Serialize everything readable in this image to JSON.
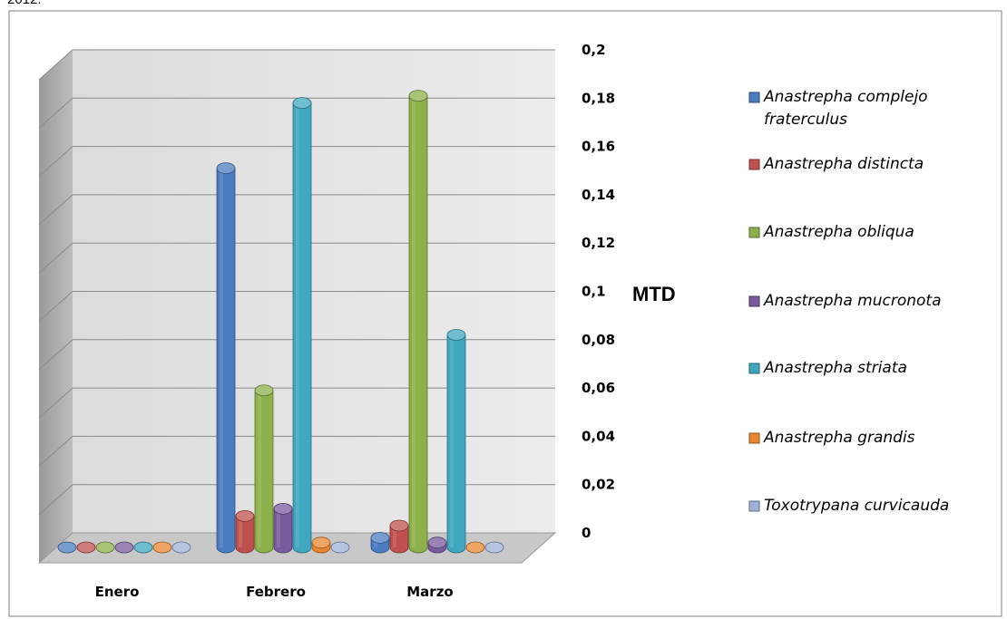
{
  "header": {
    "text": "2012."
  },
  "chart_data": {
    "type": "bar",
    "categories": [
      "Enero",
      "Febrero",
      "Marzo"
    ],
    "ylabel": "MTD",
    "ylim": [
      0,
      0.2
    ],
    "yticks": [
      "0",
      "0,02",
      "0,04",
      "0,06",
      "0,08",
      "0,1",
      "0,12",
      "0,14",
      "0,16",
      "0,18",
      "0,2"
    ],
    "grid": true,
    "legend_position": "right",
    "series": [
      {
        "name": "Anastrepha complejo fraterculus",
        "color": "#4a7cc2",
        "values": [
          0,
          0.157,
          0.004
        ]
      },
      {
        "name": "Anastrepha distincta",
        "color": "#c0504d",
        "values": [
          0,
          0.013,
          0.009
        ]
      },
      {
        "name": "Anastrepha obliqua",
        "color": "#8cb04a",
        "values": [
          0,
          0.065,
          0.187
        ]
      },
      {
        "name": "Anastrepha mucronota",
        "color": "#7a5a9e",
        "values": [
          0,
          0.016,
          0.002
        ]
      },
      {
        "name": "Anastrepha striata",
        "color": "#3fa7c0",
        "values": [
          0,
          0.184,
          0.088
        ]
      },
      {
        "name": "Anastrepha grandis",
        "color": "#e8862e",
        "values": [
          0,
          0.002,
          0
        ]
      },
      {
        "name": "Toxotrypana curvicauda",
        "color": "#9db0d8",
        "values": [
          0,
          0,
          0
        ]
      }
    ]
  }
}
